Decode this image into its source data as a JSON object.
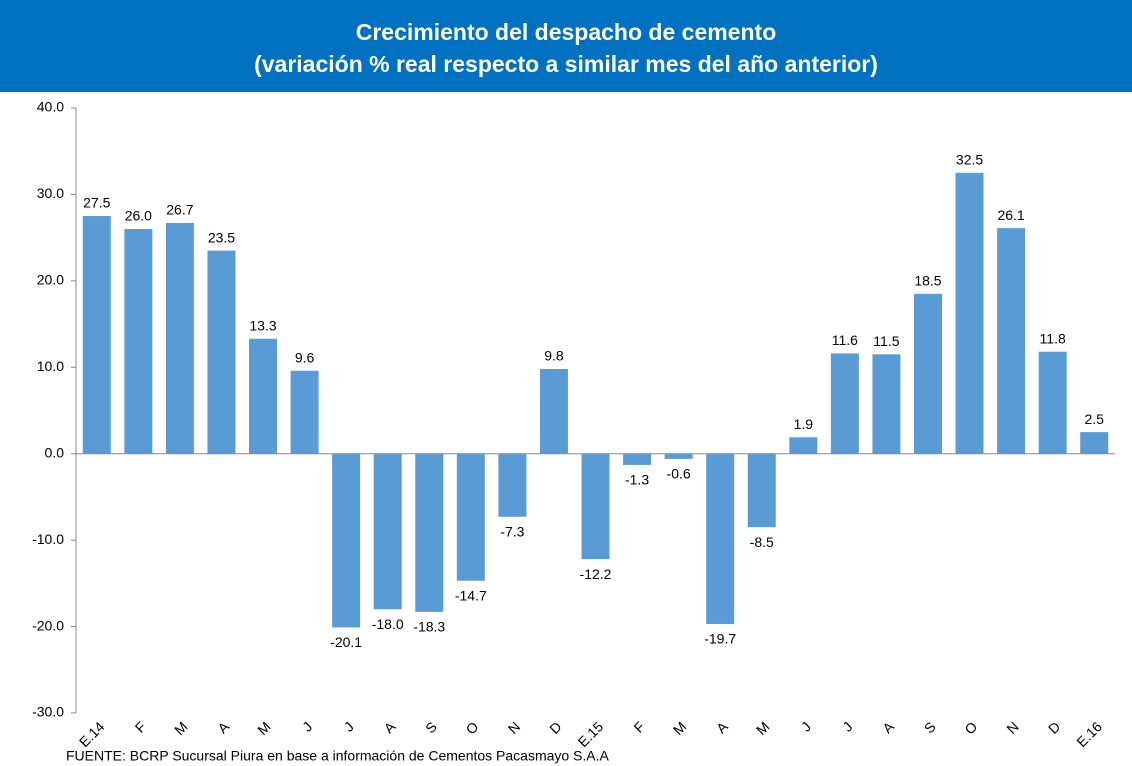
{
  "chart_data": {
    "type": "bar",
    "title": "Crecimiento del despacho de cemento",
    "subtitle": "(variación % real respecto a similar mes del año anterior)",
    "categories": [
      "E.14",
      "F",
      "M",
      "A",
      "M",
      "J",
      "J",
      "A",
      "S",
      "O",
      "N",
      "D",
      "E.15",
      "F",
      "M",
      "A",
      "M",
      "J",
      "J",
      "A",
      "S",
      "O",
      "N",
      "D",
      "E.16"
    ],
    "values": [
      27.5,
      26.0,
      26.7,
      23.5,
      13.3,
      9.6,
      -20.1,
      -18.0,
      -18.3,
      -14.7,
      -7.3,
      9.8,
      -12.2,
      -1.3,
      -0.6,
      -19.7,
      -8.5,
      1.9,
      11.6,
      11.5,
      18.5,
      32.5,
      26.1,
      11.8,
      2.5
    ],
    "value_labels": [
      "27.5",
      "26.0",
      "26.7",
      "23.5",
      "13.3",
      "9.6",
      "-20.1",
      "-18.0",
      "-18.3",
      "-14.7",
      "-7.3",
      "9.8",
      "-12.2",
      "-1.3",
      "-0.6",
      "-19.7",
      "-8.5",
      "1.9",
      "11.6",
      "11.5",
      "18.5",
      "32.5",
      "26.1",
      "11.8",
      "2.5"
    ],
    "color": "#5b9bd5",
    "ylim": [
      -30,
      40
    ],
    "yticks": [
      {
        "value": -30,
        "label": "-30.0"
      },
      {
        "value": -20,
        "label": "-20.0"
      },
      {
        "value": -10,
        "label": "-10.0"
      },
      {
        "value": 0,
        "label": "0.0"
      },
      {
        "value": 10,
        "label": "10.0"
      },
      {
        "value": 20,
        "label": "20.0"
      },
      {
        "value": 30,
        "label": "30.0"
      },
      {
        "value": 40,
        "label": "40.0"
      }
    ],
    "source": "FUENTE:  BCRP Sucursal Piura en base a información de Cementos Pacasmayo S.A.A",
    "grid": false
  }
}
